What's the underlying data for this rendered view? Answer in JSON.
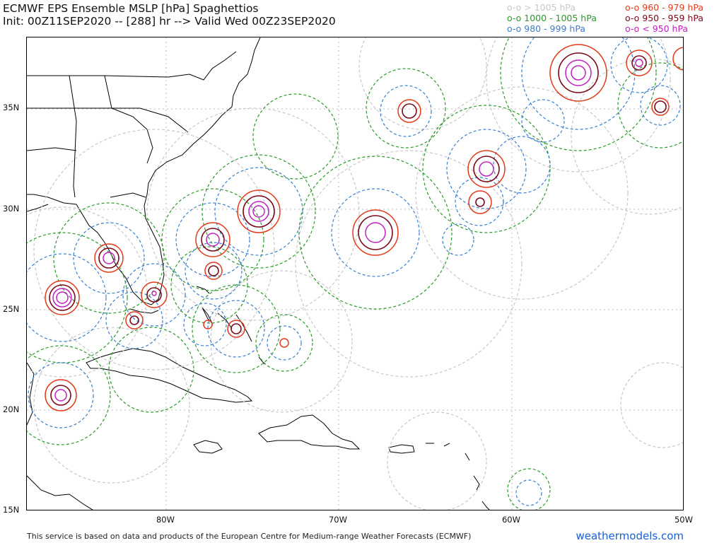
{
  "header": {
    "title": "ECMWF EPS Ensemble MSLP [hPa] Spaghettios",
    "subtitle": "Init: 00Z11SEP2020 -- [288] hr --> Valid Wed 00Z23SEP2020"
  },
  "legend": [
    {
      "label": "o-o > 1005 hPa",
      "color": "#c8c8c8"
    },
    {
      "label": "o-o 1000 - 1005 hPa",
      "color": "#2a9a2a"
    },
    {
      "label": "o-o 980 - 999 hPa",
      "color": "#3a7fd0"
    },
    {
      "label": "o-o 960 - 979 hPa",
      "color": "#e23a1a"
    },
    {
      "label": "o-o 950 - 959 hPa",
      "color": "#7a0a1a"
    },
    {
      "label": "o-o < 950 hPa",
      "color": "#c020c0"
    }
  ],
  "axes": {
    "lat_labels": [
      "35N",
      "30N",
      "25N",
      "20N",
      "15N"
    ],
    "lon_labels": [
      "80W",
      "70W",
      "60W",
      "50W"
    ]
  },
  "footer": {
    "attribution": "This service is based on data and products of the European Centre for Medium-range Weather Forecasts (ECMWF)",
    "brand": "weathermodels.com"
  }
}
